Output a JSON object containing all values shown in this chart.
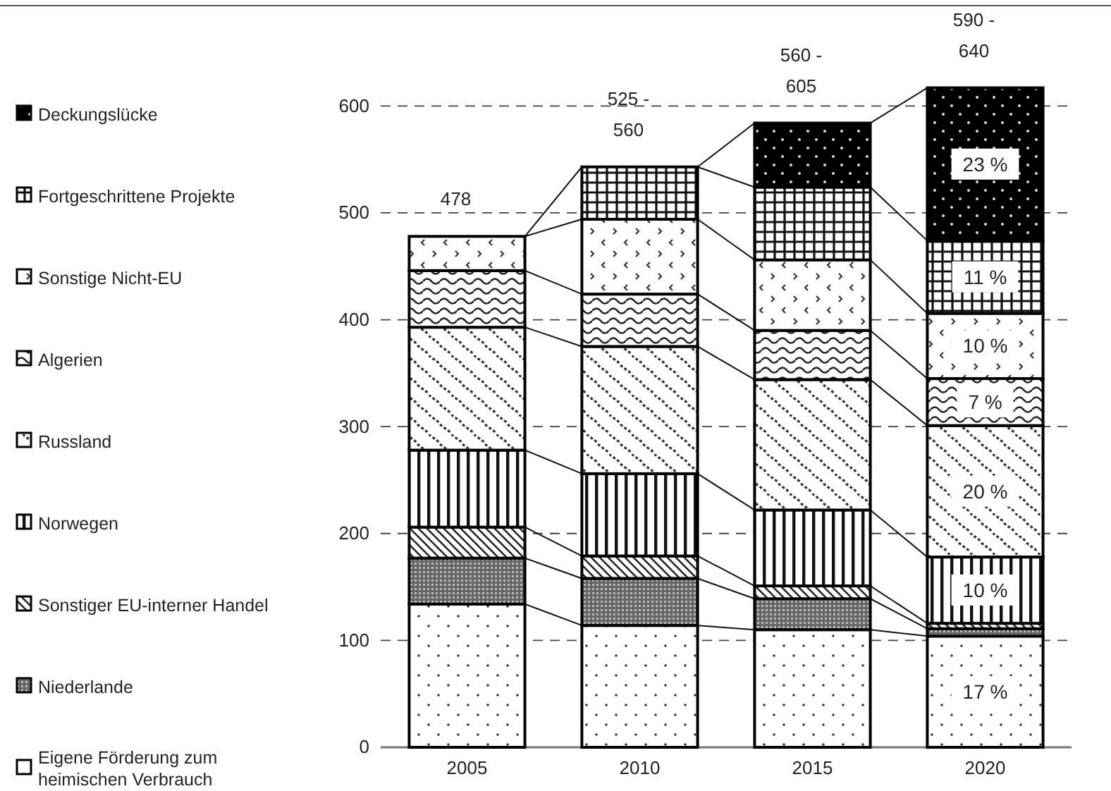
{
  "chart_data": {
    "type": "bar",
    "stacked": true,
    "categories": [
      "2005",
      "2010",
      "2015",
      "2020"
    ],
    "series": [
      {
        "name": "Eigene Förderung zum heimischen  Verbrauch",
        "values": [
          134,
          114,
          110,
          104
        ]
      },
      {
        "name": "Niederlande",
        "values": [
          43,
          44,
          29,
          7
        ]
      },
      {
        "name": "Sonstiger EU-interner Handel",
        "values": [
          29,
          21,
          12,
          5
        ]
      },
      {
        "name": "Norwegen",
        "values": [
          72,
          77,
          71,
          62
        ]
      },
      {
        "name": "Russland",
        "values": [
          115,
          119,
          122,
          123
        ]
      },
      {
        "name": "Algerien",
        "values": [
          53,
          49,
          46,
          44
        ]
      },
      {
        "name": "Sonstige Nicht-EU",
        "values": [
          32,
          70,
          66,
          61
        ]
      },
      {
        "name": "Fortgeschrittene Projekte",
        "values": [
          null,
          49,
          68,
          68
        ]
      },
      {
        "name": "Deckungslücke",
        "values": [
          null,
          null,
          60,
          143
        ]
      }
    ],
    "annotations": [
      "17 %",
      "10 %",
      "20 %",
      "7 %",
      "10 %",
      "11 %",
      "23 %"
    ],
    "totals": [
      "478",
      "525 -\n560",
      "560 -\n605",
      "590 -\n640"
    ],
    "ylim": [
      0,
      620
    ],
    "yticks": [
      0,
      100,
      200,
      300,
      400,
      500,
      600
    ],
    "grid": "y",
    "legend": "left"
  }
}
